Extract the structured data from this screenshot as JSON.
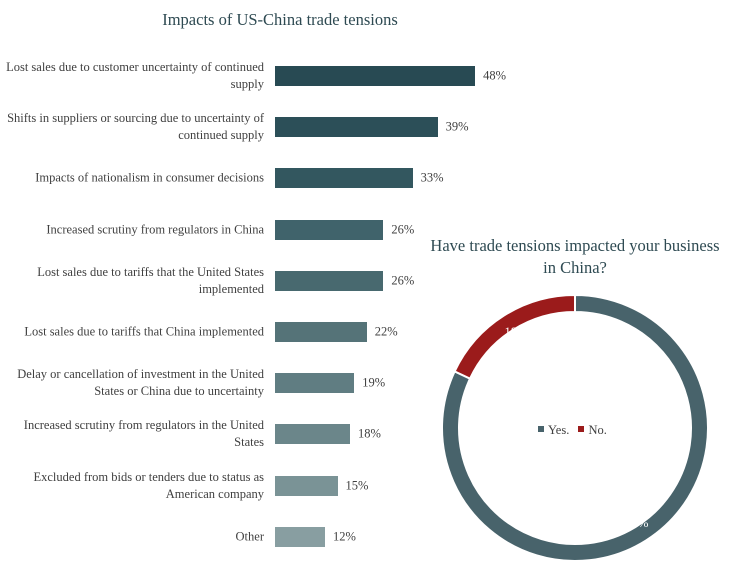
{
  "chart_data": [
    {
      "type": "bar",
      "title": "Impacts of US-China trade tensions",
      "categories": [
        "Lost sales due to customer uncertainty of continued supply",
        "Shifts in suppliers or sourcing due to uncertainty of continued supply",
        "Impacts of nationalism in consumer decisions",
        "Increased scrutiny from regulators in China",
        "Lost sales due to tariffs that the United States implemented",
        "Lost sales due to tariffs that China implemented",
        "Delay or cancellation of investment in the United States or China due to uncertainty",
        "Increased scrutiny from regulators in the United States",
        "Excluded from bids or tenders due to status as American company",
        "Other"
      ],
      "values": [
        48,
        39,
        33,
        26,
        26,
        22,
        19,
        18,
        15,
        12
      ],
      "value_labels": [
        "48%",
        "39%",
        "33%",
        "26%",
        "26%",
        "22%",
        "19%",
        "18%",
        "15%",
        "12%"
      ],
      "colors": [
        "#284a53",
        "#2c4f58",
        "#33575f",
        "#40636b",
        "#48696f",
        "#557378",
        "#607d82",
        "#6b868a",
        "#7a9396",
        "#889ea1"
      ],
      "orientation": "horizontal",
      "xlim": [
        0,
        100
      ]
    },
    {
      "type": "pie",
      "title": "Have trade tensions impacted your business in China?",
      "labels": [
        "Yes.",
        "No."
      ],
      "values": [
        82,
        18
      ],
      "value_labels": [
        "82%",
        "18%"
      ],
      "colors": [
        "#48636b",
        "#9b1b1b"
      ],
      "donut": true,
      "legend": "center"
    }
  ]
}
